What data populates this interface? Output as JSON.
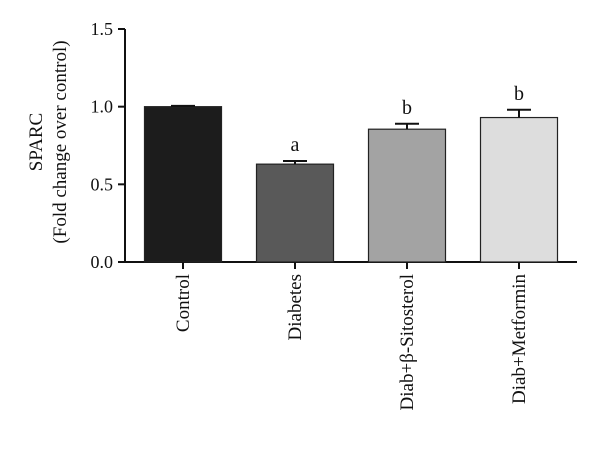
{
  "chart_data": {
    "type": "bar",
    "title": "",
    "xlabel": "",
    "ylabel_line1": "SPARC",
    "ylabel_line2": "(Fold change over control)",
    "ylim": [
      0,
      1.5
    ],
    "yticks": [
      "0.0",
      "0.5",
      "1.0",
      "1.5"
    ],
    "ytick_values": [
      0.0,
      0.5,
      1.0,
      1.5
    ],
    "categories": [
      "Control",
      "Diabetes",
      "Diab+β-Sitosterol",
      "Diab+Metformin"
    ],
    "values": [
      1.0,
      0.63,
      0.855,
      0.93
    ],
    "errors": [
      0.005,
      0.02,
      0.035,
      0.05
    ],
    "significance": [
      "",
      "a",
      "b",
      "b"
    ],
    "colors": [
      "#1c1c1c",
      "#595959",
      "#a3a3a3",
      "#dddddd"
    ],
    "grid": false,
    "legend": "none"
  }
}
